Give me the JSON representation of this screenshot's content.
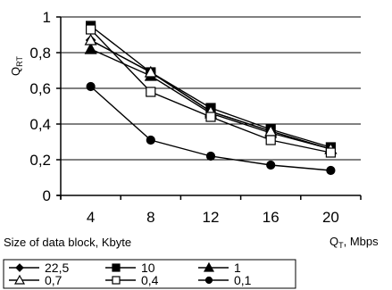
{
  "chart_data": {
    "type": "line",
    "title": "",
    "ylabel": "Q",
    "ylabel_sub": "RT",
    "xlabel": "Size of data block, Kbyte",
    "x_unit_label": "Q",
    "x_unit_sub": "T",
    "x_unit_suffix": ", Mbps",
    "categories": [
      "4",
      "8",
      "12",
      "16",
      "20"
    ],
    "x": [
      4,
      8,
      12,
      16,
      20
    ],
    "ylim": [
      0,
      1
    ],
    "yticks": [
      "0",
      "0,2",
      "0,4",
      "0,6",
      "0,8",
      "1"
    ],
    "ytick_values": [
      0,
      0.2,
      0.4,
      0.6,
      0.8,
      1
    ],
    "grid": "horizontal",
    "legend_position": "bottom",
    "series": [
      {
        "name": "22,5",
        "marker": "diamond-filled",
        "values": [
          0.87,
          0.69,
          0.47,
          0.36,
          0.26
        ]
      },
      {
        "name": "10",
        "marker": "square-filled",
        "values": [
          0.95,
          0.69,
          0.49,
          0.37,
          0.27
        ]
      },
      {
        "name": "1",
        "marker": "triangle-filled",
        "values": [
          0.82,
          0.67,
          0.46,
          0.35,
          0.26
        ]
      },
      {
        "name": "0,7",
        "marker": "triangle-open",
        "values": [
          0.87,
          0.69,
          0.47,
          0.36,
          0.26
        ]
      },
      {
        "name": "0,4",
        "marker": "square-open",
        "values": [
          0.93,
          0.58,
          0.44,
          0.31,
          0.24
        ]
      },
      {
        "name": "0,1",
        "marker": "circle-filled",
        "values": [
          0.61,
          0.31,
          0.22,
          0.17,
          0.14
        ]
      }
    ]
  }
}
